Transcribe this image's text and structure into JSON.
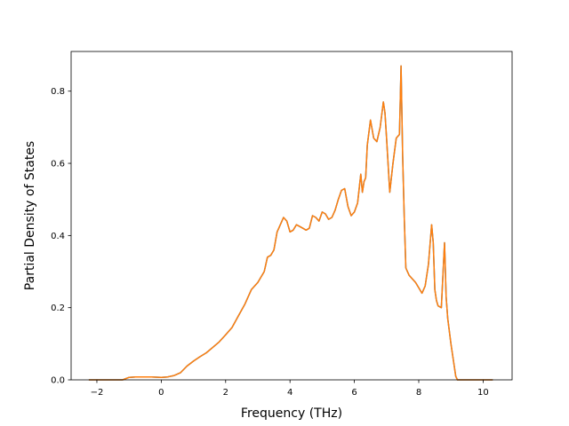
{
  "chart_data": {
    "type": "line",
    "title": "",
    "xlabel": "Frequency (THz)",
    "ylabel": "Partial Density of States",
    "xlim": [
      -2.8,
      10.9
    ],
    "ylim": [
      0.0,
      0.91
    ],
    "xticks": [
      -2,
      0,
      2,
      4,
      6,
      8,
      10
    ],
    "yticks": [
      0.0,
      0.2,
      0.4,
      0.6,
      0.8
    ],
    "xtick_labels": [
      "−2",
      "0",
      "2",
      "4",
      "6",
      "8",
      "10"
    ],
    "ytick_labels": [
      "0.0",
      "0.2",
      "0.4",
      "0.6",
      "0.8"
    ],
    "grid": false,
    "legend": "none",
    "series": [
      {
        "color": "#ff7f0e",
        "underlay_color": "#1f77b4",
        "x": [
          -2.25,
          -2.0,
          -1.5,
          -1.2,
          -1.0,
          -0.8,
          -0.5,
          -0.3,
          0.0,
          0.2,
          0.4,
          0.6,
          0.8,
          1.0,
          1.2,
          1.4,
          1.6,
          1.8,
          2.0,
          2.2,
          2.4,
          2.6,
          2.8,
          3.0,
          3.1,
          3.2,
          3.3,
          3.4,
          3.5,
          3.6,
          3.7,
          3.8,
          3.9,
          4.0,
          4.1,
          4.2,
          4.3,
          4.4,
          4.5,
          4.6,
          4.7,
          4.8,
          4.9,
          5.0,
          5.1,
          5.2,
          5.3,
          5.4,
          5.5,
          5.6,
          5.7,
          5.8,
          5.9,
          6.0,
          6.1,
          6.2,
          6.25,
          6.3,
          6.35,
          6.4,
          6.5,
          6.6,
          6.7,
          6.8,
          6.9,
          6.95,
          7.0,
          7.1,
          7.2,
          7.3,
          7.4,
          7.45,
          7.5,
          7.55,
          7.6,
          7.7,
          7.8,
          7.9,
          8.0,
          8.1,
          8.2,
          8.3,
          8.4,
          8.45,
          8.5,
          8.55,
          8.6,
          8.7,
          8.8,
          8.85,
          8.9,
          9.0,
          9.1,
          9.15,
          9.2,
          9.3,
          9.5,
          10.0,
          10.3
        ],
        "y": [
          0.0,
          0.0,
          0.0,
          0.0,
          0.007,
          0.008,
          0.008,
          0.008,
          0.007,
          0.008,
          0.012,
          0.02,
          0.038,
          0.052,
          0.064,
          0.075,
          0.09,
          0.105,
          0.125,
          0.145,
          0.178,
          0.21,
          0.25,
          0.27,
          0.285,
          0.3,
          0.34,
          0.345,
          0.36,
          0.41,
          0.43,
          0.45,
          0.44,
          0.41,
          0.415,
          0.43,
          0.425,
          0.42,
          0.415,
          0.42,
          0.455,
          0.45,
          0.44,
          0.465,
          0.46,
          0.445,
          0.45,
          0.47,
          0.5,
          0.525,
          0.53,
          0.48,
          0.455,
          0.465,
          0.49,
          0.57,
          0.52,
          0.55,
          0.56,
          0.65,
          0.72,
          0.67,
          0.66,
          0.7,
          0.77,
          0.74,
          0.67,
          0.52,
          0.6,
          0.67,
          0.68,
          0.87,
          0.62,
          0.45,
          0.31,
          0.29,
          0.28,
          0.27,
          0.255,
          0.24,
          0.26,
          0.32,
          0.43,
          0.38,
          0.25,
          0.22,
          0.205,
          0.2,
          0.38,
          0.23,
          0.17,
          0.1,
          0.04,
          0.01,
          0.0,
          0.0,
          0.0,
          0.0,
          0.0
        ]
      }
    ]
  }
}
